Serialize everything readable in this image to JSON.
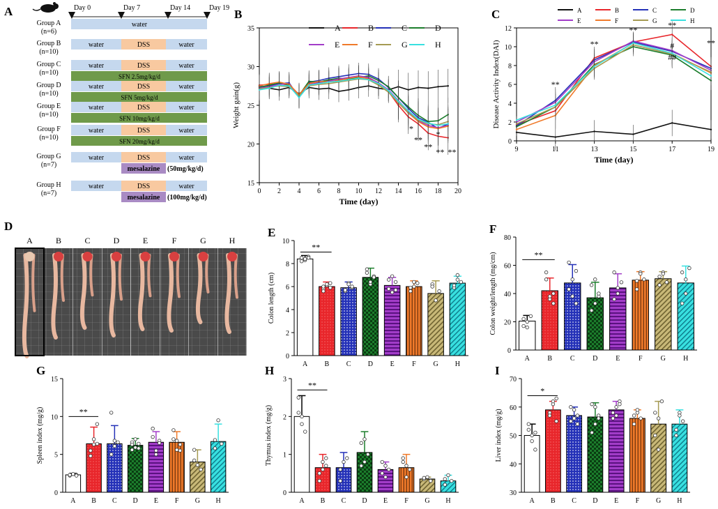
{
  "panels": {
    "A": {
      "letter": "A",
      "days": [
        "Day 0",
        "Day 7",
        "Day 14",
        "Day 19"
      ],
      "groups": [
        {
          "name": "Group A",
          "n": "(n=6)",
          "segments": [
            "water"
          ],
          "drug": ""
        },
        {
          "name": "Group B",
          "n": "(n=10)",
          "segments": [
            "water",
            "DSS",
            "water"
          ],
          "drug": ""
        },
        {
          "name": "Group C",
          "n": "(n=10)",
          "segments": [
            "water",
            "DSS",
            "water"
          ],
          "drug": "SFN 2.5mg/kg/d"
        },
        {
          "name": "Group D",
          "n": "(n=10)",
          "segments": [
            "water",
            "DSS",
            "water"
          ],
          "drug": "SFN 5mg/kg/d"
        },
        {
          "name": "Group E",
          "n": "(n=10)",
          "segments": [
            "water",
            "DSS",
            "water"
          ],
          "drug": "SFN 10mg/kg/d"
        },
        {
          "name": "Group F",
          "n": "(n=10)",
          "segments": [
            "water",
            "DSS",
            "water"
          ],
          "drug": "SFN 20mg/kg/d"
        },
        {
          "name": "Group G",
          "n": "(n=7)",
          "segments": [
            "water",
            "DSS",
            "water"
          ],
          "drug": "mesalazine",
          "dose": "(50mg/kg/d)"
        },
        {
          "name": "Group H",
          "n": "(n=7)",
          "segments": [
            "water",
            "DSS",
            "water"
          ],
          "drug": "mesalazine",
          "dose": "(100mg/kg/d)"
        }
      ],
      "colors": {
        "water": "#c5d8ee",
        "dss": "#f8c9a0",
        "sfn": "#6f9a4a",
        "mesalazine": "#a98bc4"
      }
    },
    "D": {
      "letter": "D",
      "labels": [
        "A",
        "B",
        "C",
        "D",
        "E",
        "F",
        "G",
        "H"
      ]
    }
  },
  "series_colors": {
    "A": "#111111",
    "B": "#e8262b",
    "C": "#2431b8",
    "D": "#1c7d2c",
    "E": "#a23cc8",
    "F": "#f07a2a",
    "G": "#a59a52",
    "H": "#38e0e0"
  },
  "chart_data": [
    {
      "panel": "B",
      "type": "line",
      "xlabel": "Time (day)",
      "ylabel": "Weight gain(g)",
      "xlim": [
        0,
        20
      ],
      "ylim": [
        15,
        35
      ],
      "xticks": [
        0,
        2,
        4,
        6,
        8,
        10,
        12,
        14,
        16,
        18,
        20
      ],
      "yticks": [
        15,
        20,
        25,
        30,
        35
      ],
      "x": [
        0,
        1,
        2,
        3,
        4,
        5,
        6,
        7,
        8,
        9,
        10,
        11,
        12,
        13,
        14,
        15,
        16,
        17,
        18,
        19
      ],
      "series": [
        {
          "name": "A",
          "values": [
            27.5,
            27.2,
            27.0,
            27.3,
            26.5,
            27.3,
            27.1,
            27.2,
            26.8,
            27.0,
            27.3,
            27.5,
            27.2,
            27.0,
            27.4,
            27.0,
            27.3,
            27.2,
            27.4,
            27.5
          ]
        },
        {
          "name": "B",
          "values": [
            27.6,
            27.7,
            27.8,
            27.6,
            26.2,
            27.9,
            28.0,
            28.2,
            28.3,
            28.4,
            28.6,
            28.5,
            27.6,
            26.8,
            25.0,
            23.5,
            22.6,
            21.4,
            21.0,
            20.8
          ]
        },
        {
          "name": "C",
          "values": [
            27.4,
            27.5,
            27.8,
            27.9,
            26.0,
            28.0,
            28.2,
            28.5,
            28.7,
            28.9,
            29.1,
            29.0,
            28.4,
            27.3,
            26.0,
            24.6,
            23.4,
            22.8,
            22.0,
            22.6
          ]
        },
        {
          "name": "D",
          "values": [
            27.3,
            27.6,
            27.9,
            27.6,
            26.3,
            28.1,
            28.0,
            28.3,
            28.5,
            28.4,
            28.6,
            28.8,
            28.2,
            27.4,
            26.0,
            24.8,
            23.7,
            22.9,
            23.0,
            23.8
          ]
        },
        {
          "name": "E",
          "values": [
            27.2,
            27.4,
            27.7,
            27.8,
            26.1,
            27.7,
            27.9,
            28.1,
            28.4,
            28.6,
            28.8,
            28.6,
            27.9,
            27.0,
            25.6,
            24.2,
            23.0,
            22.4,
            22.1,
            22.4
          ]
        },
        {
          "name": "F",
          "values": [
            27.5,
            27.8,
            28.0,
            27.7,
            26.4,
            27.8,
            28.1,
            28.0,
            28.2,
            28.5,
            28.7,
            28.4,
            27.7,
            26.9,
            25.4,
            24.0,
            22.9,
            22.2,
            22.0,
            22.3
          ]
        },
        {
          "name": "G",
          "values": [
            27.1,
            27.3,
            27.5,
            27.4,
            26.2,
            27.5,
            27.7,
            27.8,
            28.0,
            28.2,
            28.4,
            28.3,
            27.6,
            26.7,
            25.3,
            24.0,
            23.1,
            22.6,
            22.5,
            22.9
          ]
        },
        {
          "name": "H",
          "values": [
            27.0,
            27.2,
            27.6,
            27.5,
            26.0,
            27.6,
            27.8,
            28.0,
            28.1,
            28.3,
            28.5,
            28.3,
            27.8,
            26.9,
            25.5,
            24.3,
            23.2,
            22.7,
            22.4,
            22.6
          ]
        }
      ],
      "annotations": [
        {
          "x": 15.3,
          "y": 21.6,
          "text": "*"
        },
        {
          "x": 16,
          "y": 20.2,
          "text": "**"
        },
        {
          "x": 17,
          "y": 19.3,
          "text": "**"
        },
        {
          "x": 18,
          "y": 20.9,
          "text": "*"
        },
        {
          "x": 18.2,
          "y": 18.6,
          "text": "**"
        },
        {
          "x": 19.4,
          "y": 18.6,
          "text": "**"
        }
      ]
    },
    {
      "panel": "C",
      "type": "line",
      "xlabel": "Time (day)",
      "ylabel": "Disease Activity Index(DAI)",
      "xlim": [
        9,
        19
      ],
      "ylim": [
        0,
        12
      ],
      "xticks": [
        9,
        11,
        13,
        15,
        17,
        19
      ],
      "yticks": [
        0,
        2,
        4,
        6,
        8,
        10,
        12
      ],
      "x": [
        9,
        11,
        13,
        15,
        17,
        19
      ],
      "series": [
        {
          "name": "A",
          "values": [
            0.9,
            0.4,
            1.0,
            0.7,
            1.9,
            1.2
          ]
        },
        {
          "name": "B",
          "values": [
            1.7,
            3.2,
            8.8,
            10.5,
            11.3,
            7.9
          ]
        },
        {
          "name": "C",
          "values": [
            1.6,
            4.3,
            8.6,
            10.5,
            9.5,
            7.7
          ]
        },
        {
          "name": "D",
          "values": [
            1.5,
            3.6,
            8.1,
            10.0,
            9.1,
            6.4
          ]
        },
        {
          "name": "E",
          "values": [
            2.0,
            4.1,
            8.4,
            10.6,
            9.6,
            7.5
          ]
        },
        {
          "name": "F",
          "values": [
            1.2,
            2.7,
            8.0,
            10.4,
            9.3,
            7.2
          ]
        },
        {
          "name": "G",
          "values": [
            1.8,
            3.6,
            7.7,
            10.2,
            9.2,
            7.3
          ]
        },
        {
          "name": "H",
          "values": [
            2.2,
            3.8,
            7.9,
            10.4,
            9.3,
            6.9
          ]
        }
      ],
      "annotations": [
        {
          "x": 11,
          "y": 5.7,
          "text": "**"
        },
        {
          "x": 13,
          "y": 10.0,
          "text": "**"
        },
        {
          "x": 15,
          "y": 11.5,
          "text": "**"
        },
        {
          "x": 17,
          "y": 12.0,
          "text": "**"
        },
        {
          "x": 17,
          "y": 9.8,
          "text": "#"
        },
        {
          "x": 17,
          "y": 8.6,
          "text": "##"
        },
        {
          "x": 19,
          "y": 10.1,
          "text": "**"
        }
      ]
    },
    {
      "panel": "E",
      "type": "bar",
      "ylabel": "Colon length (cm)",
      "ylim": [
        0,
        10
      ],
      "yticks": [
        0,
        2,
        4,
        6,
        8,
        10
      ],
      "categories": [
        "A",
        "B",
        "C",
        "D",
        "E",
        "F",
        "G",
        "H"
      ],
      "values": [
        8.4,
        6.0,
        5.9,
        6.8,
        6.1,
        6.0,
        5.4,
        6.3
      ],
      "errors": [
        0.3,
        0.4,
        0.5,
        0.8,
        0.7,
        0.5,
        1.1,
        0.6
      ],
      "points": [
        [
          8.5,
          8.3,
          8.6,
          8.2,
          8.4,
          8.5
        ],
        [
          5.8,
          6.1,
          6.3,
          5.6,
          6.2,
          5.9,
          6.0
        ],
        [
          5.6,
          6.3,
          5.9,
          5.7,
          6.2,
          6.0
        ],
        [
          7.5,
          6.2,
          6.9,
          7.2,
          6.4,
          6.8
        ],
        [
          6.6,
          5.5,
          6.4,
          5.8,
          6.9,
          5.7
        ],
        [
          5.9,
          6.4,
          6.3,
          5.6,
          6.0
        ],
        [
          6.2,
          4.8,
          5.6,
          6.0
        ],
        [
          5.9,
          7.0,
          6.4,
          6.1,
          6.6
        ]
      ],
      "sig": {
        "from": 0,
        "to": 1,
        "label": "**",
        "y": 9.0
      }
    },
    {
      "panel": "F",
      "type": "bar",
      "ylabel": "Colon weight/length (mg/cm)",
      "ylim": [
        0,
        80
      ],
      "yticks": [
        0,
        20,
        40,
        60,
        80
      ],
      "categories": [
        "A",
        "B",
        "C",
        "D",
        "E",
        "F",
        "G",
        "H"
      ],
      "values": [
        20.5,
        42.0,
        47.5,
        37.0,
        44.0,
        49.5,
        50.5,
        47.5
      ],
      "errors": [
        4,
        9,
        13,
        11,
        10,
        6,
        5,
        12
      ],
      "points": [
        [
          17,
          20,
          24,
          22,
          16
        ],
        [
          50,
          36,
          40,
          55,
          38,
          33
        ],
        [
          43,
          50,
          56,
          62,
          38,
          33
        ],
        [
          28,
          33,
          38,
          46,
          50,
          40
        ],
        [
          36,
          40,
          48,
          55,
          44
        ],
        [
          43,
          55,
          50,
          49,
          54
        ],
        [
          46,
          55,
          48,
          52,
          54
        ],
        [
          33,
          40,
          58,
          55,
          50
        ]
      ],
      "sig": {
        "from": 0,
        "to": 1,
        "label": "**",
        "y": 64
      }
    },
    {
      "panel": "G",
      "type": "bar",
      "ylabel": "Spleen index (mg/g)",
      "ylim": [
        0,
        15
      ],
      "yticks": [
        0,
        5,
        10,
        15
      ],
      "categories": [
        "A",
        "B",
        "C",
        "D",
        "E",
        "F",
        "G",
        "H"
      ],
      "values": [
        2.3,
        6.4,
        6.4,
        6.2,
        6.6,
        6.6,
        4.0,
        6.7
      ],
      "errors": [
        0.2,
        2.2,
        2.4,
        0.9,
        1.4,
        1.4,
        1.6,
        2.3
      ],
      "points": [
        [
          2.2,
          2.4,
          2.3,
          2.3,
          2.4,
          2.2
        ],
        [
          4.8,
          7.0,
          9.0,
          5.5,
          6.3,
          6.4
        ],
        [
          5.0,
          6.1,
          6.6,
          10.5,
          6.8
        ],
        [
          5.6,
          5.9,
          6.4,
          6.6,
          7.0,
          5.8,
          6.3
        ],
        [
          8.4,
          5.0,
          6.8,
          7.3,
          5.5,
          6.5
        ],
        [
          8.2,
          5.6,
          6.3,
          7.0,
          6.8,
          5.5
        ],
        [
          5.6,
          3.6,
          3.0,
          4.2
        ],
        [
          5.8,
          9.5,
          6.4,
          6.9
        ]
      ],
      "sig": {
        "from": 0,
        "to": 1,
        "label": "**",
        "y": 10.0
      }
    },
    {
      "panel": "H",
      "type": "bar",
      "ylabel": "Thymus index (mg/g)",
      "ylim": [
        0,
        3
      ],
      "yticks": [
        0,
        1,
        2,
        3
      ],
      "categories": [
        "A",
        "B",
        "C",
        "D",
        "E",
        "F",
        "G",
        "H"
      ],
      "values": [
        2.0,
        0.65,
        0.65,
        1.05,
        0.6,
        0.65,
        0.35,
        0.3
      ],
      "errors": [
        0.55,
        0.35,
        0.4,
        0.55,
        0.2,
        0.35,
        0.05,
        0.15
      ],
      "points": [
        [
          2.5,
          1.8,
          1.6,
          2.1,
          2.0
        ],
        [
          0.5,
          0.8,
          0.9,
          0.3,
          0.6,
          0.7
        ],
        [
          0.3,
          0.8,
          0.9,
          0.6
        ],
        [
          0.7,
          1.4,
          1.0,
          1.3,
          0.8
        ],
        [
          0.5,
          0.7,
          0.6,
          0.8,
          0.4
        ],
        [
          0.9,
          0.4,
          0.6,
          0.8,
          0.7
        ],
        [
          0.35,
          0.4,
          0.3,
          0.38
        ],
        [
          0.2,
          0.45,
          0.3,
          0.35
        ]
      ],
      "sig": {
        "from": 0,
        "to": 1,
        "label": "**",
        "y": 2.7
      }
    },
    {
      "panel": "I",
      "type": "bar",
      "ylabel": "Liver index (mg/g)",
      "ylim": [
        30,
        70
      ],
      "yticks": [
        30,
        40,
        50,
        60,
        70
      ],
      "categories": [
        "A",
        "B",
        "C",
        "D",
        "E",
        "F",
        "G",
        "H"
      ],
      "values": [
        50.0,
        59.0,
        57.0,
        56.5,
        59.0,
        56.0,
        54.0,
        54.0
      ],
      "errors": [
        4,
        3,
        3,
        5,
        3,
        3,
        8,
        5
      ],
      "points": [
        [
          52,
          48,
          45,
          54,
          50,
          51
        ],
        [
          58,
          61,
          63,
          57,
          62,
          55
        ],
        [
          55,
          59,
          57,
          60,
          56,
          54
        ],
        [
          51,
          60,
          57,
          61,
          54,
          56
        ],
        [
          56,
          60,
          62,
          58,
          57,
          61
        ],
        [
          54,
          58,
          56,
          57,
          59
        ],
        [
          50,
          45,
          62,
          58,
          56
        ],
        [
          50,
          58,
          55,
          52,
          57
        ]
      ],
      "sig": {
        "from": 0,
        "to": 1,
        "label": "*",
        "y": 64
      }
    }
  ]
}
